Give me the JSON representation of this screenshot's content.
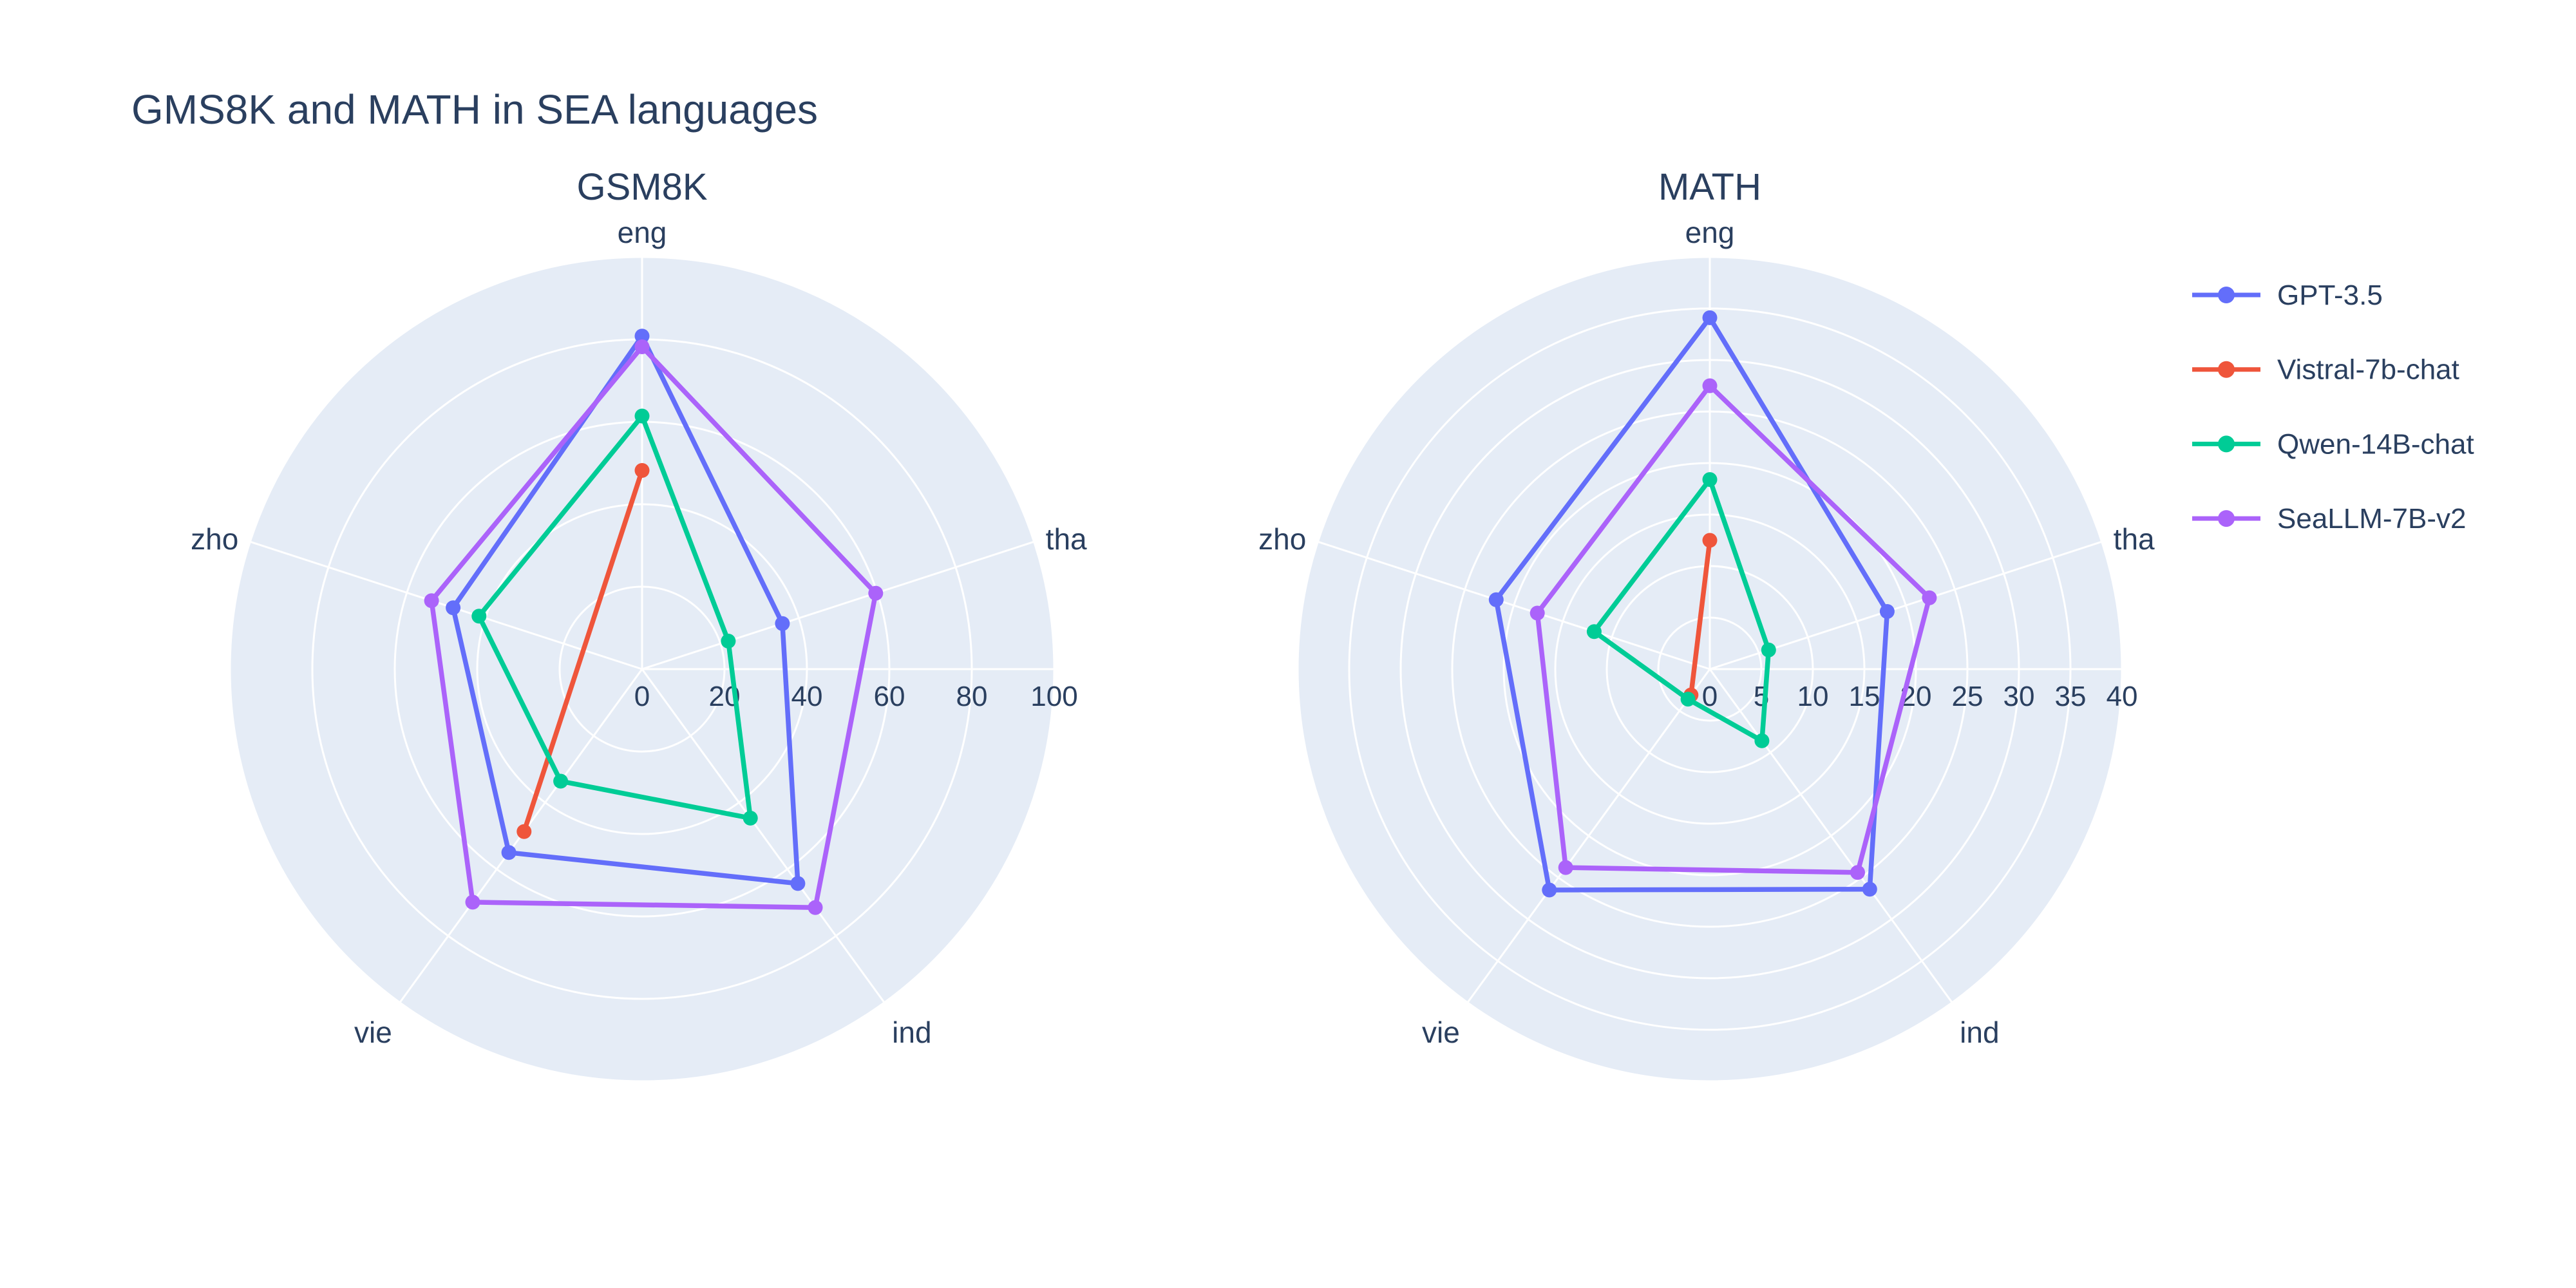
{
  "figure": {
    "title": "GMS8K and MATH in SEA languages"
  },
  "colors": {
    "text": "#2a3f5f",
    "page_background": "#ffffff",
    "polar_background": "#E5ECF6",
    "grid": "#ffffff"
  },
  "legend": {
    "position": "right",
    "items": [
      "GPT-3.5",
      "Vistral-7b-chat",
      "Qwen-14B-chat",
      "SeaLLM-7B-v2"
    ]
  },
  "chart_data": [
    {
      "type": "radar",
      "title": "GSM8K",
      "categories": [
        "eng",
        "tha",
        "ind",
        "vie",
        "zho"
      ],
      "angles_deg": [
        90,
        18,
        -54,
        -126,
        162
      ],
      "r_max": 100,
      "radial_ticks": [
        0,
        20,
        40,
        60,
        80,
        100
      ],
      "grid": true,
      "series": [
        {
          "name": "GPT-3.5",
          "color": "#636EFA",
          "values": [
            80.8,
            35.8,
            64.3,
            55.0,
            48.2
          ]
        },
        {
          "name": "Vistral-7b-chat",
          "color": "#EF553B",
          "values": [
            48.2,
            null,
            null,
            48.7,
            null
          ]
        },
        {
          "name": "Qwen-14B-chat",
          "color": "#00CC96",
          "values": [
            61.4,
            22.0,
            44.7,
            33.6,
            41.6
          ]
        },
        {
          "name": "SeaLLM-7B-v2",
          "color": "#AB63FA",
          "values": [
            78.2,
            59.6,
            71.5,
            69.9,
            53.7
          ]
        }
      ]
    },
    {
      "type": "radar",
      "title": "MATH",
      "categories": [
        "eng",
        "tha",
        "ind",
        "vie",
        "zho"
      ],
      "angles_deg": [
        90,
        18,
        -54,
        -126,
        162
      ],
      "r_max": 40,
      "radial_ticks": [
        0,
        5,
        10,
        15,
        20,
        25,
        30,
        35,
        40
      ],
      "grid": true,
      "series": [
        {
          "name": "GPT-3.5",
          "color": "#636EFA",
          "values": [
            34.1,
            18.1,
            26.4,
            26.5,
            21.8
          ]
        },
        {
          "name": "Vistral-7b-chat",
          "color": "#EF553B",
          "values": [
            12.5,
            null,
            null,
            3.1,
            null
          ]
        },
        {
          "name": "Qwen-14B-chat",
          "color": "#00CC96",
          "values": [
            18.4,
            6.0,
            8.6,
            3.6,
            11.8
          ]
        },
        {
          "name": "SeaLLM-7B-v2",
          "color": "#AB63FA",
          "values": [
            27.5,
            22.4,
            24.4,
            23.8,
            17.6
          ]
        }
      ]
    }
  ]
}
